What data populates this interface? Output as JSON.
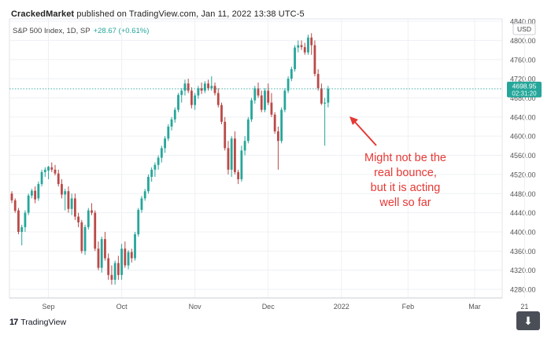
{
  "header": {
    "publisher_name": "CrackedMarket",
    "publisher_text": " published on TradingView.com, Jan 11, 2022 13:38 UTC-5",
    "symbol": "S&P 500 Index, 1D, SP",
    "change": "+28.67 (+0.61%)"
  },
  "price_label": {
    "value": "4698.95",
    "countdown": "02:31:20",
    "currency": "USD"
  },
  "annotation": {
    "lines": [
      "Might not be the",
      "real bounce,",
      "but it is acting",
      "well so far"
    ]
  },
  "brand": {
    "logo": "17",
    "name": "TradingView"
  },
  "download_icon": "download-arrow-icon",
  "colors": {
    "up": "#26a69a",
    "down": "#b94a48",
    "annotation": "#e53935",
    "price_tag": "#26a69a"
  },
  "chart_data": {
    "type": "candlestick",
    "yticks": [
      4280,
      4320,
      4360,
      4400,
      4440,
      4480,
      4520,
      4560,
      4600,
      4640,
      4680,
      4720,
      4760,
      4800,
      4840
    ],
    "ylim": [
      4262,
      4845
    ],
    "xticks": [
      {
        "label": "Sep",
        "index": 11
      },
      {
        "label": "Oct",
        "index": 33
      },
      {
        "label": "Nov",
        "index": 55
      },
      {
        "label": "Dec",
        "index": 77
      },
      {
        "label": "2022",
        "index": 99
      },
      {
        "label": "Feb",
        "index": 119
      },
      {
        "label": "Mar",
        "index": 139
      },
      {
        "label": "21",
        "index": 154
      }
    ],
    "last_price": 4698.95,
    "candles": [
      [
        4480,
        4485,
        4460,
        4466
      ],
      [
        4466,
        4470,
        4440,
        4444
      ],
      [
        4445,
        4450,
        4395,
        4400
      ],
      [
        4400,
        4415,
        4372,
        4410
      ],
      [
        4410,
        4445,
        4400,
        4440
      ],
      [
        4440,
        4480,
        4435,
        4476
      ],
      [
        4476,
        4490,
        4470,
        4486
      ],
      [
        4486,
        4495,
        4460,
        4468
      ],
      [
        4470,
        4505,
        4465,
        4500
      ],
      [
        4500,
        4530,
        4495,
        4525
      ],
      [
        4525,
        4535,
        4515,
        4530
      ],
      [
        4528,
        4538,
        4510,
        4536
      ],
      [
        4535,
        4545,
        4525,
        4530
      ],
      [
        4530,
        4540,
        4518,
        4522
      ],
      [
        4522,
        4530,
        4495,
        4500
      ],
      [
        4500,
        4510,
        4470,
        4478
      ],
      [
        4478,
        4490,
        4445,
        4485
      ],
      [
        4485,
        4495,
        4440,
        4448
      ],
      [
        4448,
        4480,
        4435,
        4470
      ],
      [
        4470,
        4480,
        4425,
        4432
      ],
      [
        4432,
        4440,
        4410,
        4420
      ],
      [
        4420,
        4425,
        4355,
        4360
      ],
      [
        4360,
        4415,
        4352,
        4410
      ],
      [
        4410,
        4450,
        4405,
        4445
      ],
      [
        4445,
        4460,
        4435,
        4440
      ],
      [
        4440,
        4445,
        4360,
        4365
      ],
      [
        4365,
        4380,
        4320,
        4325
      ],
      [
        4325,
        4390,
        4315,
        4385
      ],
      [
        4385,
        4400,
        4340,
        4345
      ],
      [
        4345,
        4355,
        4300,
        4310
      ],
      [
        4310,
        4330,
        4290,
        4300
      ],
      [
        4300,
        4340,
        4290,
        4335
      ],
      [
        4335,
        4350,
        4300,
        4310
      ],
      [
        4310,
        4375,
        4300,
        4365
      ],
      [
        4365,
        4380,
        4325,
        4330
      ],
      [
        4330,
        4362,
        4322,
        4358
      ],
      [
        4358,
        4365,
        4336,
        4345
      ],
      [
        4345,
        4400,
        4340,
        4395
      ],
      [
        4395,
        4450,
        4390,
        4446
      ],
      [
        4446,
        4475,
        4440,
        4470
      ],
      [
        4470,
        4490,
        4465,
        4485
      ],
      [
        4485,
        4520,
        4480,
        4515
      ],
      [
        4515,
        4535,
        4505,
        4530
      ],
      [
        4530,
        4545,
        4515,
        4540
      ],
      [
        4540,
        4560,
        4530,
        4555
      ],
      [
        4555,
        4580,
        4545,
        4575
      ],
      [
        4575,
        4600,
        4565,
        4595
      ],
      [
        4595,
        4625,
        4590,
        4620
      ],
      [
        4620,
        4640,
        4612,
        4635
      ],
      [
        4635,
        4660,
        4628,
        4655
      ],
      [
        4655,
        4690,
        4650,
        4686
      ],
      [
        4686,
        4700,
        4670,
        4695
      ],
      [
        4695,
        4718,
        4685,
        4710
      ],
      [
        4710,
        4720,
        4690,
        4695
      ],
      [
        4695,
        4702,
        4658,
        4665
      ],
      [
        4665,
        4690,
        4655,
        4685
      ],
      [
        4685,
        4705,
        4678,
        4700
      ],
      [
        4700,
        4712,
        4688,
        4695
      ],
      [
        4695,
        4715,
        4690,
        4710
      ],
      [
        4710,
        4718,
        4695,
        4700
      ],
      [
        4700,
        4725,
        4695,
        4705
      ],
      [
        4705,
        4712,
        4685,
        4690
      ],
      [
        4690,
        4700,
        4660,
        4665
      ],
      [
        4665,
        4670,
        4625,
        4630
      ],
      [
        4630,
        4640,
        4570,
        4575
      ],
      [
        4575,
        4590,
        4520,
        4530
      ],
      [
        4530,
        4600,
        4515,
        4595
      ],
      [
        4595,
        4610,
        4520,
        4525
      ],
      [
        4525,
        4530,
        4500,
        4510
      ],
      [
        4510,
        4580,
        4505,
        4570
      ],
      [
        4570,
        4600,
        4560,
        4590
      ],
      [
        4590,
        4640,
        4585,
        4635
      ],
      [
        4635,
        4680,
        4630,
        4675
      ],
      [
        4675,
        4705,
        4668,
        4700
      ],
      [
        4700,
        4712,
        4680,
        4685
      ],
      [
        4685,
        4695,
        4650,
        4655
      ],
      [
        4655,
        4700,
        4650,
        4695
      ],
      [
        4695,
        4710,
        4665,
        4670
      ],
      [
        4670,
        4690,
        4640,
        4645
      ],
      [
        4645,
        4650,
        4605,
        4610
      ],
      [
        4610,
        4620,
        4530,
        4590
      ],
      [
        4590,
        4660,
        4585,
        4655
      ],
      [
        4655,
        4700,
        4650,
        4695
      ],
      [
        4695,
        4725,
        4690,
        4720
      ],
      [
        4720,
        4745,
        4715,
        4740
      ],
      [
        4740,
        4790,
        4735,
        4785
      ],
      [
        4785,
        4800,
        4775,
        4790
      ],
      [
        4790,
        4800,
        4780,
        4786
      ],
      [
        4786,
        4795,
        4770,
        4775
      ],
      [
        4775,
        4812,
        4770,
        4806
      ],
      [
        4806,
        4815,
        4770,
        4790
      ],
      [
        4790,
        4800,
        4725,
        4730
      ],
      [
        4730,
        4740,
        4695,
        4700
      ],
      [
        4700,
        4710,
        4665,
        4668
      ],
      [
        4668,
        4680,
        4580,
        4670
      ],
      [
        4670,
        4705,
        4660,
        4699
      ]
    ]
  }
}
